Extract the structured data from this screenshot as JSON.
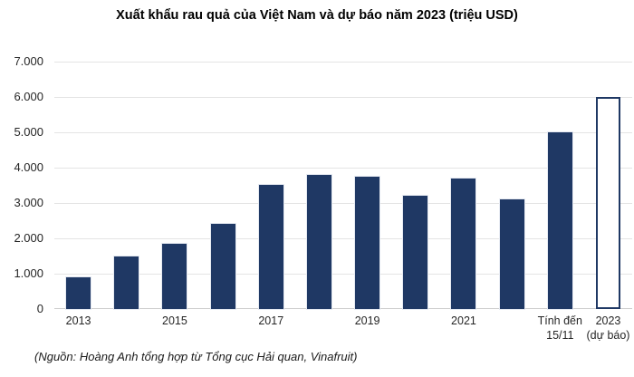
{
  "title": "Xuất khẩu rau quả của Việt Nam và dự báo năm 2023 (triệu USD)",
  "source_note": "(Nguồn: Hoàng Anh tổng hợp từ Tổng cục Hải quan, Vinafruit)",
  "colors": {
    "bar_fill": "#1f3864",
    "forecast_bar_border": "#1f3864",
    "forecast_bar_fill": "#ffffff",
    "gridline": "#e4e4e4",
    "axis_line": "#cdcdcd",
    "label_text": "#262626",
    "title_text": "#000000"
  },
  "chart_data": {
    "type": "bar",
    "title": "Xuất khẩu rau quả của Việt Nam và dự báo năm 2023 (triệu USD)",
    "xlabel": "",
    "ylabel": "",
    "ylim": [
      0,
      7000
    ],
    "ytick_step": 1000,
    "ytick_labels_top_down": [
      "7.000",
      "6.000",
      "5.000",
      "4.000",
      "3.000",
      "2.000",
      "1.000",
      "0"
    ],
    "grid": true,
    "legend": "none",
    "categories": [
      "2013",
      "",
      "2015",
      "",
      "2017",
      "",
      "2019",
      "",
      "2021",
      "",
      "Tính đến\n15/11",
      "2023\n(dự báo)"
    ],
    "values": [
      900,
      1490,
      1840,
      2400,
      3500,
      3800,
      3750,
      3200,
      3700,
      3100,
      5000,
      6000
    ],
    "forecast_index": 11,
    "forecast_style": "outline",
    "annotation": "Last solid bar is value up to 15/11; final hollow bar is the 2023 forecast"
  }
}
